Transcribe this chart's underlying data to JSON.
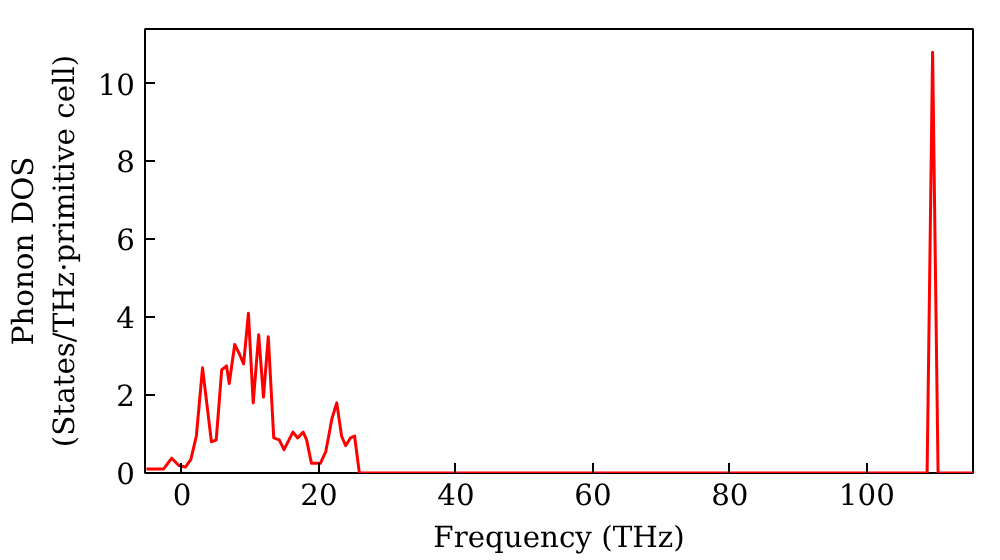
{
  "chart_data": {
    "type": "line",
    "xlabel": "Frequency (THz)",
    "ylabel": "Phonon DOS\n(States/THz·primitive cell)",
    "xlim": [
      -5.4,
      115.5
    ],
    "ylim": [
      0,
      11.4
    ],
    "xticks": [
      0,
      20,
      40,
      60,
      80,
      100
    ],
    "yticks": [
      0,
      2,
      4,
      6,
      8,
      10
    ],
    "grid": false,
    "series": [
      {
        "color": "#ff0000",
        "x": [
          -5.2,
          -2.7,
          -1.5,
          -0.5,
          0.5,
          1.3,
          2.1,
          3.0,
          4.3,
          5.0,
          5.8,
          6.5,
          6.9,
          7.7,
          8.4,
          9.0,
          9.7,
          10.4,
          11.2,
          11.9,
          12.6,
          13.4,
          14.2,
          14.9,
          16.2,
          16.9,
          17.7,
          18.2,
          18.9,
          20.2,
          21.0,
          21.9,
          22.6,
          23.3,
          23.9,
          24.6,
          25.2,
          25.9,
          60,
          108.8,
          109.6,
          110.4,
          115.5
        ],
        "values": [
          0.1,
          0.1,
          0.38,
          0.2,
          0.15,
          0.35,
          0.95,
          2.7,
          0.8,
          0.85,
          2.65,
          2.75,
          2.3,
          3.3,
          3.05,
          2.8,
          4.1,
          1.8,
          3.55,
          1.95,
          3.5,
          0.9,
          0.85,
          0.6,
          1.05,
          0.9,
          1.05,
          0.85,
          0.25,
          0.25,
          0.55,
          1.4,
          1.8,
          0.95,
          0.7,
          0.9,
          0.95,
          0,
          0,
          0,
          10.8,
          0,
          0
        ]
      }
    ]
  }
}
